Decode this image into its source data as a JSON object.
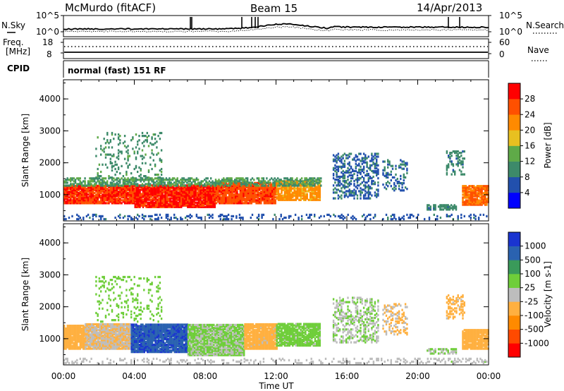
{
  "header": {
    "station": "McMurdo (fitACF)",
    "beam": "Beam 15",
    "date": "14/Apr/2013"
  },
  "noise_panel": {
    "left_label": "N.Sky",
    "right_label": "N.Search",
    "left_ticks": [
      "10^5",
      "10^0"
    ],
    "right_ticks": [
      "10^5",
      "10^0"
    ]
  },
  "freq_panel": {
    "left_label_line1": "Freq.",
    "left_label_line2": "[MHz]",
    "left_ticks": [
      "18",
      "8"
    ],
    "right_label": "Nave",
    "right_ticks": [
      "60",
      "0"
    ]
  },
  "cpid_panel": {
    "label": "CPID",
    "mode": "normal (fast) 151 RF"
  },
  "time_axis": {
    "label": "Time UT",
    "ticks": [
      "00:00",
      "04:00",
      "08:00",
      "12:00",
      "16:00",
      "20:00",
      "00:00"
    ]
  },
  "colors": {
    "power": [
      "#0000ff",
      "#2250ad",
      "#3d8a6a",
      "#5faa48",
      "#e8c020",
      "#ff8a00",
      "#ff5000",
      "#ff0000"
    ],
    "velocity": [
      "#ff0000",
      "#ff4a00",
      "#ff8a00",
      "#ffb040",
      "#bdbdbd",
      "#6fce3a",
      "#3a9a5a",
      "#2a62b0",
      "#1a34d0"
    ]
  },
  "chart_data": [
    {
      "type": "heatmap",
      "title": "",
      "xlabel": "Time UT",
      "ylabel": "Slant Range [km]",
      "xlim": [
        0,
        24
      ],
      "ylim": [
        180,
        4600
      ],
      "yticks": [
        "1000",
        "2000",
        "3000",
        "4000"
      ],
      "colorbar": {
        "label": "Power [dB]",
        "ticks": [
          "4",
          "8",
          "12",
          "16",
          "20",
          "24",
          "28"
        ],
        "range": [
          0,
          30
        ]
      },
      "blobs": [
        {
          "t0": 0.0,
          "t1": 4.0,
          "r0": 700,
          "r1": 1280,
          "value": 26,
          "density": 0.95
        },
        {
          "t0": 4.0,
          "t1": 8.5,
          "r0": 580,
          "r1": 1300,
          "value": 27,
          "density": 0.95
        },
        {
          "t0": 8.5,
          "t1": 12.0,
          "r0": 700,
          "r1": 1350,
          "value": 25,
          "density": 0.92
        },
        {
          "t0": 12.0,
          "t1": 14.5,
          "r0": 800,
          "r1": 1420,
          "value": 20,
          "density": 0.85
        },
        {
          "t0": 0.0,
          "t1": 14.5,
          "r0": 1250,
          "r1": 1520,
          "value": 11,
          "density": 0.6
        },
        {
          "t0": 1.8,
          "t1": 5.5,
          "r0": 1500,
          "r1": 2900,
          "value": 10,
          "density": 0.15
        },
        {
          "t0": 15.2,
          "t1": 17.8,
          "r0": 850,
          "r1": 2250,
          "value": 7,
          "density": 0.4
        },
        {
          "t0": 18.0,
          "t1": 19.4,
          "r0": 1100,
          "r1": 2050,
          "value": 7,
          "density": 0.3
        },
        {
          "t0": 20.5,
          "t1": 22.2,
          "r0": 500,
          "r1": 680,
          "value": 9,
          "density": 0.7
        },
        {
          "t0": 21.6,
          "t1": 22.6,
          "r0": 1600,
          "r1": 2350,
          "value": 9,
          "density": 0.35
        },
        {
          "t0": 22.5,
          "t1": 24.0,
          "r0": 650,
          "r1": 1250,
          "value": 23,
          "density": 0.9
        },
        {
          "t0": 0.0,
          "t1": 24.0,
          "r0": 200,
          "r1": 380,
          "value": 6,
          "density": 0.22
        }
      ]
    },
    {
      "type": "heatmap",
      "title": "",
      "xlabel": "Time UT",
      "ylabel": "Slant Range [km]",
      "xlim": [
        0,
        24
      ],
      "ylim": [
        180,
        4600
      ],
      "yticks": [
        "1000",
        "2000",
        "3000",
        "4000"
      ],
      "colorbar": {
        "label": "Velocity [m s-1]",
        "ticks": [
          "1000",
          "500",
          "100",
          "25",
          "-25",
          "-100",
          "-500",
          "-1000"
        ],
        "range": [
          -1200,
          1200
        ]
      },
      "blobs": [
        {
          "t0": 0.0,
          "t1": 1.2,
          "r0": 650,
          "r1": 1400,
          "value": -250,
          "density": 0.95
        },
        {
          "t0": 1.2,
          "t1": 3.8,
          "r0": 650,
          "r1": 1450,
          "value": -120,
          "density": 0.95
        },
        {
          "t0": 3.8,
          "t1": 7.0,
          "r0": 550,
          "r1": 1450,
          "value": 900,
          "density": 0.95
        },
        {
          "t0": 7.0,
          "t1": 10.2,
          "r0": 450,
          "r1": 1400,
          "value": 150,
          "density": 0.95
        },
        {
          "t0": 10.2,
          "t1": 12.0,
          "r0": 650,
          "r1": 1450,
          "value": -200,
          "density": 0.92
        },
        {
          "t0": 12.0,
          "t1": 14.5,
          "r0": 750,
          "r1": 1450,
          "value": 200,
          "density": 0.85
        },
        {
          "t0": 1.8,
          "t1": 5.5,
          "r0": 1500,
          "r1": 2900,
          "value": 300,
          "density": 0.15
        },
        {
          "t0": 15.2,
          "t1": 17.8,
          "r0": 850,
          "r1": 2250,
          "value": 120,
          "density": 0.4
        },
        {
          "t0": 18.0,
          "t1": 19.4,
          "r0": 1100,
          "r1": 2050,
          "value": -150,
          "density": 0.3
        },
        {
          "t0": 20.5,
          "t1": 22.2,
          "r0": 500,
          "r1": 680,
          "value": 120,
          "density": 0.7
        },
        {
          "t0": 21.6,
          "t1": 22.6,
          "r0": 1600,
          "r1": 2350,
          "value": -200,
          "density": 0.35
        },
        {
          "t0": 22.5,
          "t1": 24.0,
          "r0": 650,
          "r1": 1250,
          "value": -300,
          "density": 0.9
        },
        {
          "t0": 0.0,
          "t1": 24.0,
          "r0": 200,
          "r1": 380,
          "value": 60,
          "density": 0.22
        }
      ]
    }
  ]
}
